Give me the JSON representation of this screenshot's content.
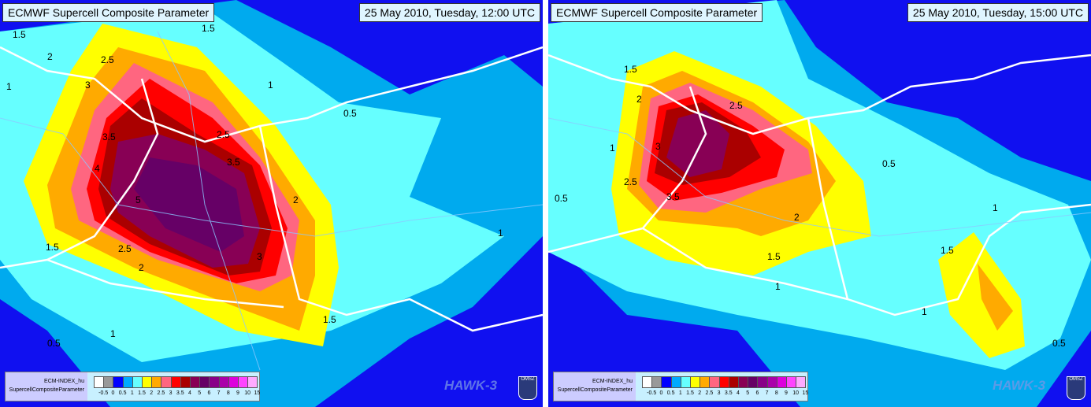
{
  "panels": [
    {
      "title": "ECMWF Supercell Composite Parameter",
      "datetime": "25 May 2010, Tuesday, 12:00 UTC",
      "contour_labels": [
        "1.5",
        "2",
        "2.5",
        "3",
        "3.5",
        "4",
        "5",
        "2.5",
        "3.5",
        "2",
        "1.5",
        "1",
        "0.5",
        "1",
        "2.5",
        "2",
        "3",
        "1.5",
        "1",
        "0.5",
        "1",
        "1.5"
      ]
    },
    {
      "title": "ECMWF Supercell Composite Parameter",
      "datetime": "25 May 2010, Tuesday, 15:00 UTC",
      "contour_labels": [
        "1.5",
        "2",
        "2.5",
        "3",
        "3.5",
        "2.5",
        "2",
        "1.5",
        "1",
        "0.5",
        "1",
        "1.5",
        "1",
        "0.5",
        "0.5",
        "1"
      ]
    }
  ],
  "legend": {
    "line1": "ECM-INDEX_hu",
    "line2": "SupercellCompositeParameter",
    "colors": [
      "#ffffff",
      "#999999",
      "#0000ff",
      "#00aaff",
      "#66ffff",
      "#ffff00",
      "#ffaa00",
      "#ff6680",
      "#ff0000",
      "#aa0000",
      "#880055",
      "#660066",
      "#880088",
      "#aa00aa",
      "#dd00dd",
      "#ff44ff",
      "#ffaaff"
    ],
    "ticks": [
      "-0.5",
      "0",
      "0.5",
      "1",
      "1.5",
      "2",
      "2.5",
      "3",
      "3.5",
      "4",
      "5",
      "6",
      "7",
      "8",
      "9",
      "10",
      "15"
    ]
  },
  "branding": {
    "watermark": "HAWK-3",
    "logo": "OMSZ"
  }
}
